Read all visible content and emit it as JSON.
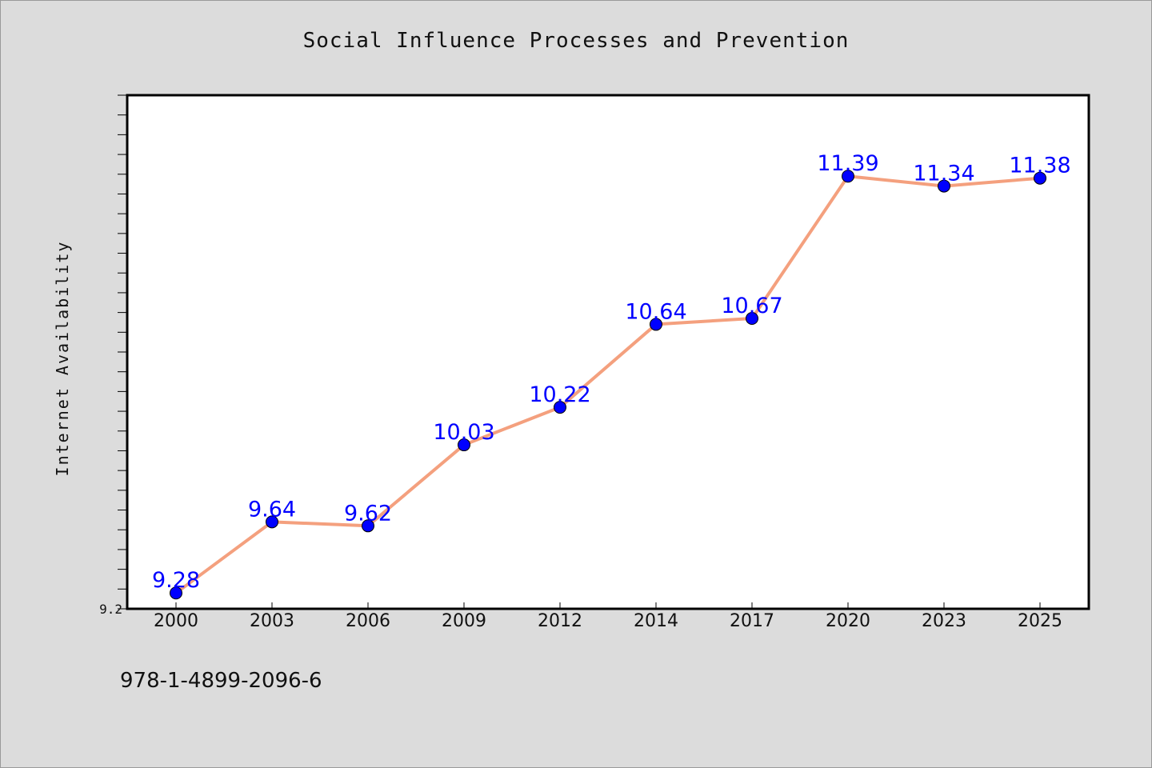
{
  "chart_data": {
    "type": "line",
    "title": "Social Influence Processes and Prevention",
    "ylabel": "Internet Availability",
    "xlabel": "",
    "categories": [
      "2000",
      "2003",
      "2006",
      "2009",
      "2012",
      "2014",
      "2017",
      "2020",
      "2023",
      "2025"
    ],
    "series": [
      {
        "values": [
          9.28,
          9.64,
          9.62,
          10.03,
          10.22,
          10.64,
          10.67,
          11.39,
          11.34,
          11.38
        ]
      }
    ],
    "ylim": [
      9.2,
      11.8
    ],
    "y_tick_labels": [
      "9.2"
    ],
    "grid": false,
    "colors": {
      "line": "#f4a07e",
      "marker": "#0000ff",
      "data_label": "#0000ff",
      "plot_background": "#ffffff",
      "figure_background": "#dcdcdc"
    }
  },
  "footer": {
    "text": "978-1-4899-2096-6"
  }
}
